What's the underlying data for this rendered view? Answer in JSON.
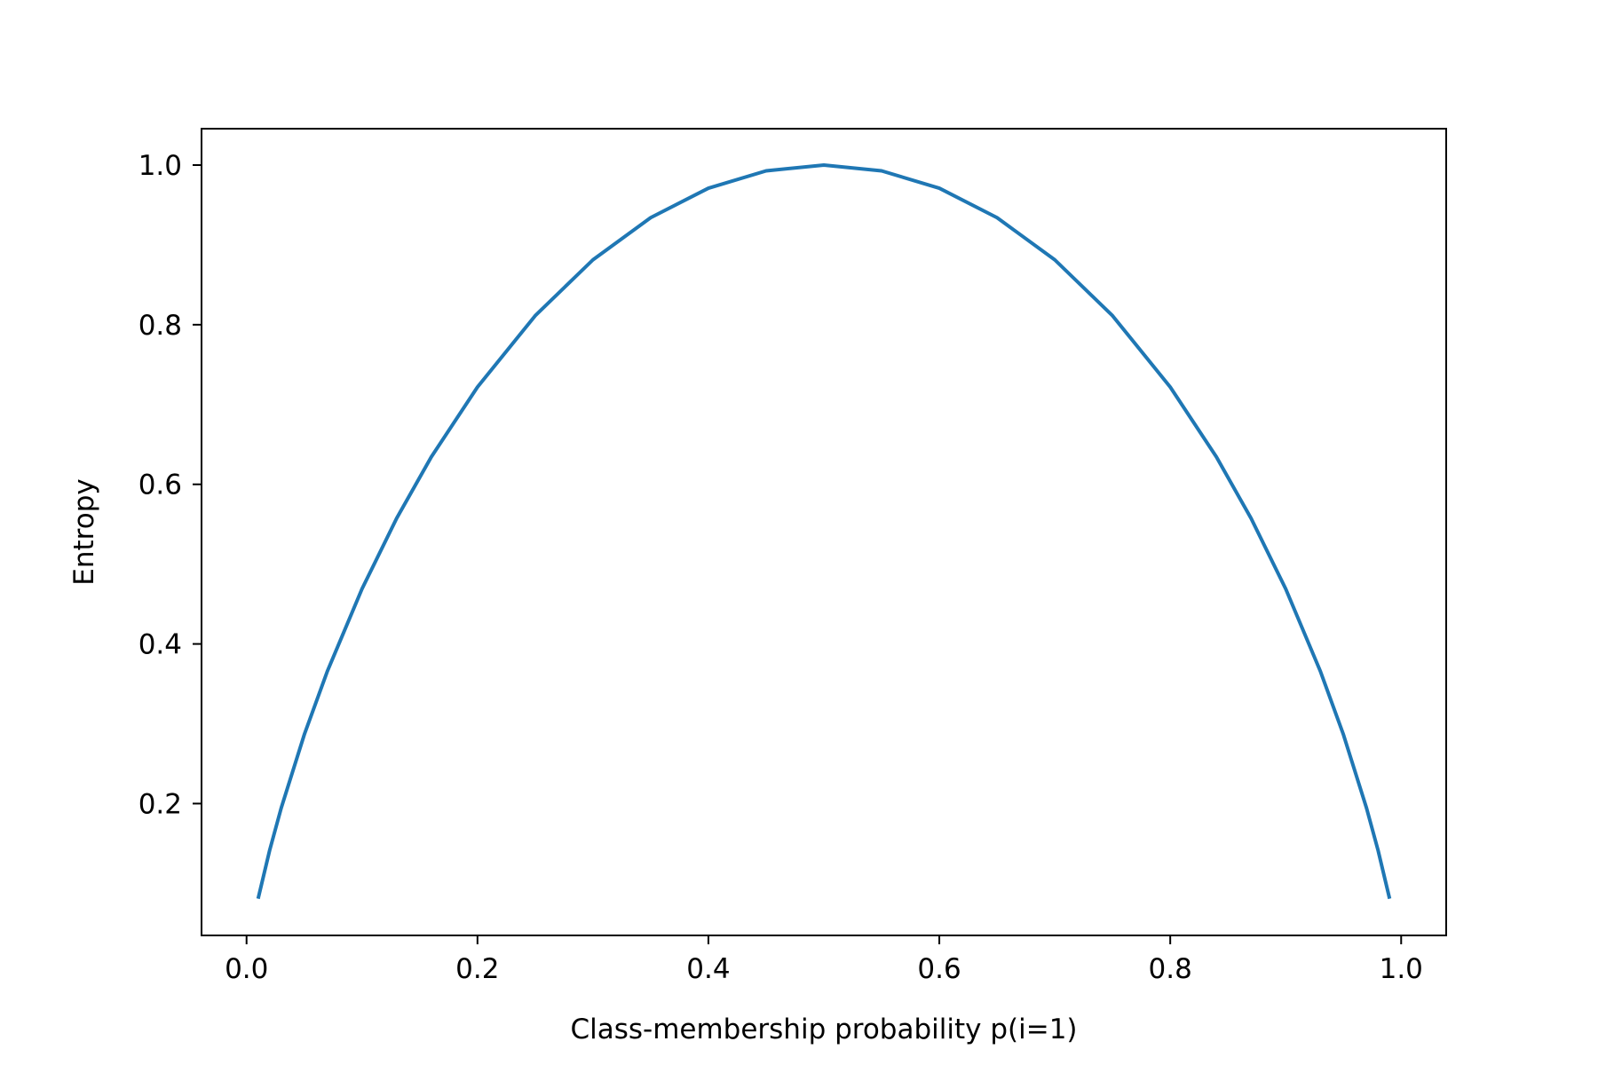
{
  "chart_data": {
    "type": "line",
    "title": "",
    "xlabel": "Class-membership probability p(i=1)",
    "ylabel": "Entropy",
    "xlim": [
      -0.039,
      1.039
    ],
    "ylim": [
      0.0348,
      1.0456
    ],
    "x_ticks": [
      {
        "value": 0.0,
        "label": "0.0"
      },
      {
        "value": 0.2,
        "label": "0.2"
      },
      {
        "value": 0.4,
        "label": "0.4"
      },
      {
        "value": 0.6,
        "label": "0.6"
      },
      {
        "value": 0.8,
        "label": "0.8"
      },
      {
        "value": 1.0,
        "label": "1.0"
      }
    ],
    "y_ticks": [
      {
        "value": 0.2,
        "label": "0.2"
      },
      {
        "value": 0.4,
        "label": "0.4"
      },
      {
        "value": 0.6,
        "label": "0.6"
      },
      {
        "value": 0.8,
        "label": "0.8"
      },
      {
        "value": 1.0,
        "label": "1.0"
      }
    ],
    "grid": false,
    "legend": "none",
    "series": [
      {
        "color": "#1f77b4",
        "x": [
          0.01,
          0.02,
          0.03,
          0.05,
          0.07,
          0.1,
          0.13,
          0.16,
          0.2,
          0.25,
          0.3,
          0.35,
          0.4,
          0.45,
          0.5,
          0.55,
          0.6,
          0.65,
          0.7,
          0.75,
          0.8,
          0.84,
          0.87,
          0.9,
          0.93,
          0.95,
          0.97,
          0.98,
          0.99
        ],
        "y": [
          0.0808,
          0.1414,
          0.1944,
          0.2864,
          0.3659,
          0.469,
          0.5574,
          0.6343,
          0.7219,
          0.8113,
          0.8813,
          0.9341,
          0.971,
          0.9928,
          1.0,
          0.9928,
          0.971,
          0.9341,
          0.8813,
          0.8113,
          0.7219,
          0.6343,
          0.5574,
          0.469,
          0.3659,
          0.2864,
          0.1944,
          0.1414,
          0.0808
        ]
      }
    ]
  },
  "colors": {
    "line": "#1f77b4",
    "axes": "#000000",
    "background": "#ffffff"
  }
}
